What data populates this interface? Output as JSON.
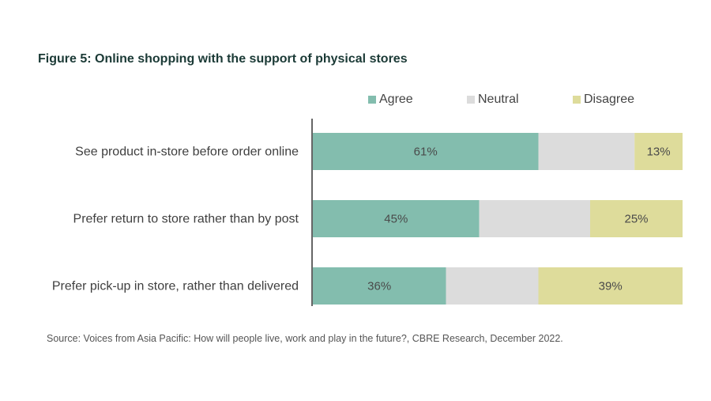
{
  "chart_data": {
    "type": "bar",
    "orientation": "horizontal",
    "stacked": true,
    "title": "Figure 5: Online shopping with the support of physical stores",
    "categories": [
      "See product in-store before order online",
      "Prefer return to store rather than by post",
      "Prefer pick-up in store, rather than delivered"
    ],
    "series": [
      {
        "name": "Agree",
        "color": "#83bdae",
        "values": [
          61,
          45,
          36
        ],
        "labels": [
          "61%",
          "45%",
          "36%"
        ]
      },
      {
        "name": "Neutral",
        "color": "#dcdcdc",
        "values": [
          26,
          30,
          25
        ],
        "labels": [
          "",
          "",
          ""
        ]
      },
      {
        "name": "Disagree",
        "color": "#dedc9b",
        "values": [
          13,
          25,
          39
        ],
        "labels": [
          "13%",
          "25%",
          "39%"
        ]
      }
    ],
    "xlim": [
      0,
      100
    ],
    "legend_position": "top",
    "grid": false,
    "source": "Source: Voices from Asia Pacific: How will people live, work and play in the future?, CBRE Research, December 2022."
  }
}
